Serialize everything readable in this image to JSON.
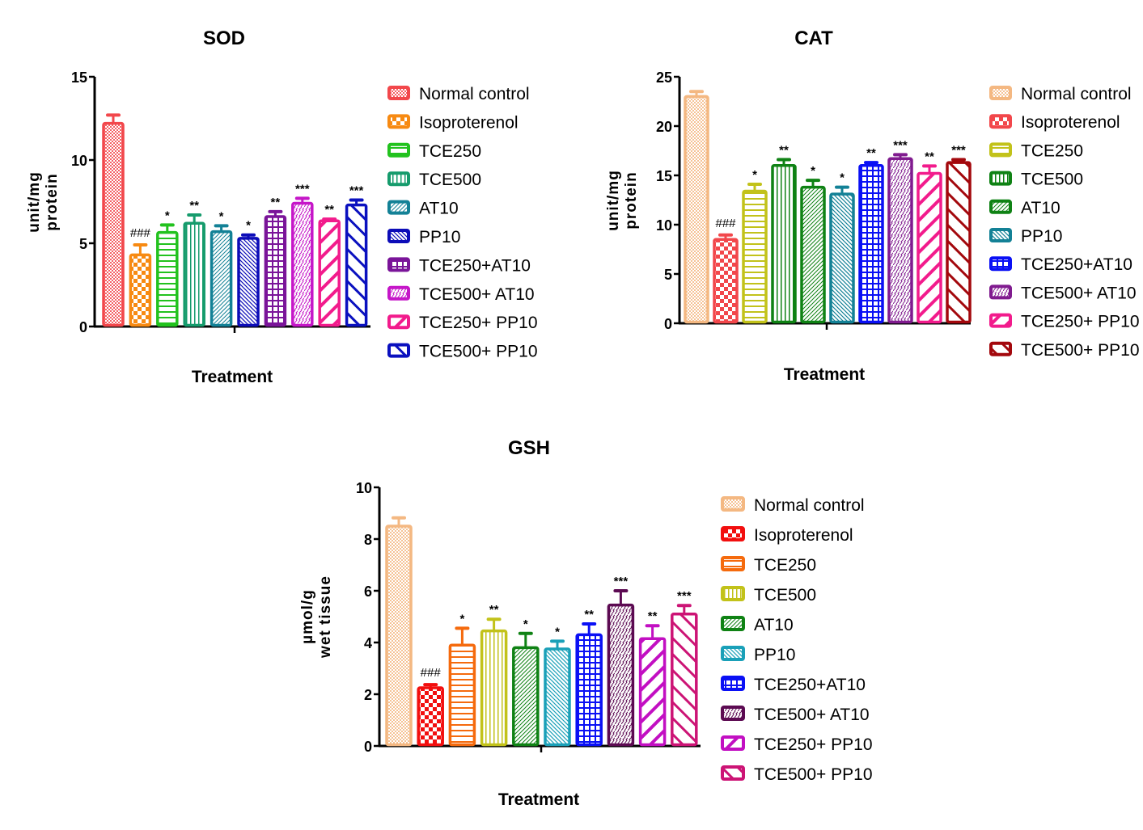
{
  "chart_data": [
    {
      "id": "sod",
      "type": "bar",
      "title": "SOD",
      "xlabel": "Treatment",
      "ylabel_lines": [
        "unit/mg",
        "protein"
      ],
      "ylim": [
        0,
        15
      ],
      "yticks": [
        0,
        5,
        10,
        15
      ],
      "grid": false,
      "legend_position": "right",
      "categories": [
        "Normal control",
        "Isoproterenol",
        "TCE250",
        "TCE500",
        "AT10",
        "PP10",
        "TCE250+AT10",
        "TCE500+ AT10",
        "TCE250+ PP10",
        "TCE500+ PP10"
      ],
      "values": [
        12.2,
        4.3,
        5.65,
        6.2,
        5.7,
        5.3,
        6.6,
        7.4,
        6.35,
        7.3
      ],
      "errors": [
        0.5,
        0.6,
        0.45,
        0.5,
        0.35,
        0.2,
        0.3,
        0.3,
        0.1,
        0.3
      ],
      "annotations": [
        "",
        "###",
        "*",
        "**",
        "*",
        "*",
        "**",
        "***",
        "**",
        "***"
      ],
      "colors": [
        "#f2474b",
        "#f78a12",
        "#22c21e",
        "#159b6c",
        "#138196",
        "#0c0cb8",
        "#7a1499",
        "#c516c8",
        "#f21b8c",
        "#0a10bf"
      ],
      "patterns": [
        "dots",
        "checker",
        "hlines",
        "vlines",
        "diag-fine",
        "backdiag-fine",
        "grid",
        "wave",
        "backdiag-wide",
        "diag-wide"
      ]
    },
    {
      "id": "cat",
      "type": "bar",
      "title": "CAT",
      "xlabel": "Treatment",
      "ylabel_lines": [
        "unit/mg",
        "protein"
      ],
      "ylim": [
        0,
        25
      ],
      "yticks": [
        0,
        5,
        10,
        15,
        20,
        25
      ],
      "grid": false,
      "legend_position": "right",
      "categories": [
        "Normal control",
        "Isoproterenol",
        "TCE250",
        "TCE500",
        "AT10",
        "PP10",
        "TCE250+AT10",
        "TCE500+ AT10",
        "TCE250+ PP10",
        "TCE500+ PP10"
      ],
      "values": [
        23.0,
        8.5,
        13.4,
        16.0,
        13.8,
        13.1,
        16.0,
        16.7,
        15.2,
        16.3
      ],
      "errors": [
        0.5,
        0.45,
        0.7,
        0.6,
        0.7,
        0.7,
        0.3,
        0.4,
        0.75,
        0.3
      ],
      "annotations": [
        "",
        "###",
        "*",
        "**",
        "*",
        "*",
        "**",
        "***",
        "**",
        "***"
      ],
      "colors": [
        "#f4b882",
        "#f2474b",
        "#c2c21a",
        "#0f8214",
        "#0f8214",
        "#138196",
        "#0a10f5",
        "#801b8f",
        "#f21b8c",
        "#a3080d"
      ],
      "patterns": [
        "dots",
        "checker",
        "hlines",
        "vlines",
        "diag-fine",
        "backdiag-fine",
        "grid",
        "wave",
        "backdiag-wide",
        "diag-wide"
      ]
    },
    {
      "id": "gsh",
      "type": "bar",
      "title": "GSH",
      "xlabel": "Treatment",
      "ylabel_lines": [
        "µmol/g",
        "wet tissue"
      ],
      "ylim": [
        0,
        10
      ],
      "yticks": [
        0,
        2,
        4,
        6,
        8,
        10
      ],
      "grid": false,
      "legend_position": "right",
      "categories": [
        "Normal control",
        "Isoproterenol",
        "TCE250",
        "TCE500",
        "AT10",
        "PP10",
        "TCE250+AT10",
        "TCE500+ AT10",
        "TCE250+ PP10",
        "TCE500+ PP10"
      ],
      "values": [
        8.5,
        2.25,
        3.9,
        4.45,
        3.8,
        3.75,
        4.3,
        5.45,
        4.15,
        5.1
      ],
      "errors": [
        0.32,
        0.12,
        0.65,
        0.45,
        0.55,
        0.3,
        0.42,
        0.55,
        0.5,
        0.33
      ],
      "annotations": [
        "",
        "###",
        "*",
        "**",
        "*",
        "*",
        "**",
        "***",
        "**",
        "***"
      ],
      "colors": [
        "#f4b882",
        "#f20f0f",
        "#f56a0d",
        "#c2c21a",
        "#0f8214",
        "#1aa0b8",
        "#0a10f5",
        "#5c0a52",
        "#c20fc2",
        "#cc1475"
      ],
      "patterns": [
        "dots",
        "checker",
        "hlines",
        "vlines",
        "diag-fine",
        "backdiag-fine",
        "grid",
        "wave",
        "backdiag-wide",
        "diag-wide"
      ]
    }
  ]
}
